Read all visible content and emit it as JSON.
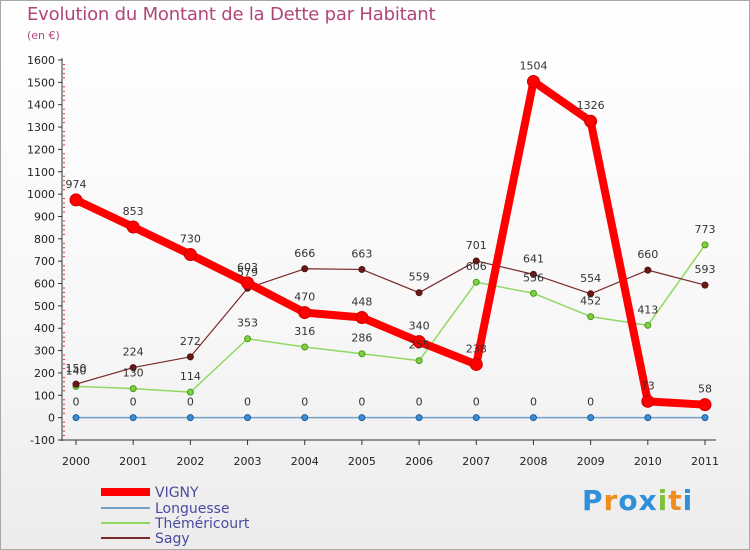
{
  "chart_data": {
    "type": "line",
    "title": "Evolution du Montant de la Dette par Habitant",
    "subtitle": "(en €)",
    "x": [
      "2000",
      "2001",
      "2002",
      "2003",
      "2004",
      "2005",
      "2006",
      "2007",
      "2008",
      "2009",
      "2010",
      "2011"
    ],
    "ylim": [
      -100,
      1600
    ],
    "yticks": [
      -100,
      0,
      100,
      200,
      300,
      400,
      500,
      600,
      700,
      800,
      900,
      1000,
      1100,
      1200,
      1300,
      1400,
      1500,
      1600
    ],
    "grid": false,
    "legend_position": "bottom-left",
    "series": [
      {
        "name": "VIGNY",
        "color": "#ff0000",
        "values": [
          974,
          853,
          730,
          603,
          470,
          448,
          340,
          238,
          1504,
          1326,
          73,
          58
        ],
        "labels": [
          "974",
          "853",
          "730",
          "603",
          "470",
          "448",
          "340",
          "238",
          "1504",
          "1326",
          "73",
          "58"
        ]
      },
      {
        "name": "Longuesse",
        "color": "#6fa0c8",
        "values": [
          0,
          0,
          0,
          0,
          0,
          0,
          0,
          0,
          0,
          0,
          0,
          0
        ],
        "labels": [
          "0",
          "0",
          "0",
          "0",
          "0",
          "0",
          "0",
          "0",
          "0",
          "0",
          "",
          ""
        ]
      },
      {
        "name": "Théméricourt",
        "color": "#90d860",
        "values": [
          140,
          130,
          114,
          353,
          316,
          286,
          255,
          606,
          556,
          452,
          413,
          773
        ],
        "labels": [
          "140",
          "130",
          "114",
          "353",
          "316",
          "286",
          "255",
          "606",
          "556",
          "452",
          "413",
          "773"
        ]
      },
      {
        "name": "Sagy",
        "color": "#7a2a2a",
        "values": [
          150,
          224,
          272,
          579,
          666,
          663,
          559,
          701,
          641,
          554,
          660,
          593
        ],
        "labels": [
          "150",
          "224",
          "272",
          "579",
          "666",
          "663",
          "559",
          "701",
          "641",
          "554",
          "660",
          "593"
        ]
      }
    ]
  },
  "brand": {
    "letters": [
      "P",
      "r",
      "o",
      "x",
      "i",
      "t",
      "i"
    ],
    "colors": [
      "#2f8fd8",
      "#f08c1c",
      "#2f8fd8",
      "#2f8fd8",
      "#7fc23a",
      "#f08c1c",
      "#2f8fd8"
    ]
  }
}
